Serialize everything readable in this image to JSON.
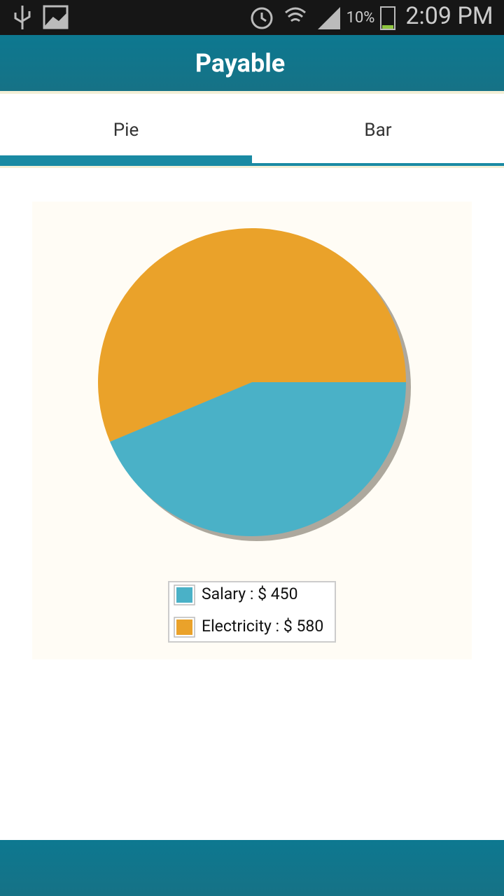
{
  "status_bar": {
    "battery": "10%",
    "time": "2:09 PM"
  },
  "header": {
    "title": "Payable"
  },
  "tabs": [
    "Pie",
    "Bar"
  ],
  "chart_data": {
    "type": "pie",
    "values": [
      450,
      580
    ],
    "value_labels": [
      "Salary : $ 450",
      "Electricity : $ 580"
    ],
    "colors": [
      "#4ab1c7",
      "#eaa22a"
    ]
  }
}
